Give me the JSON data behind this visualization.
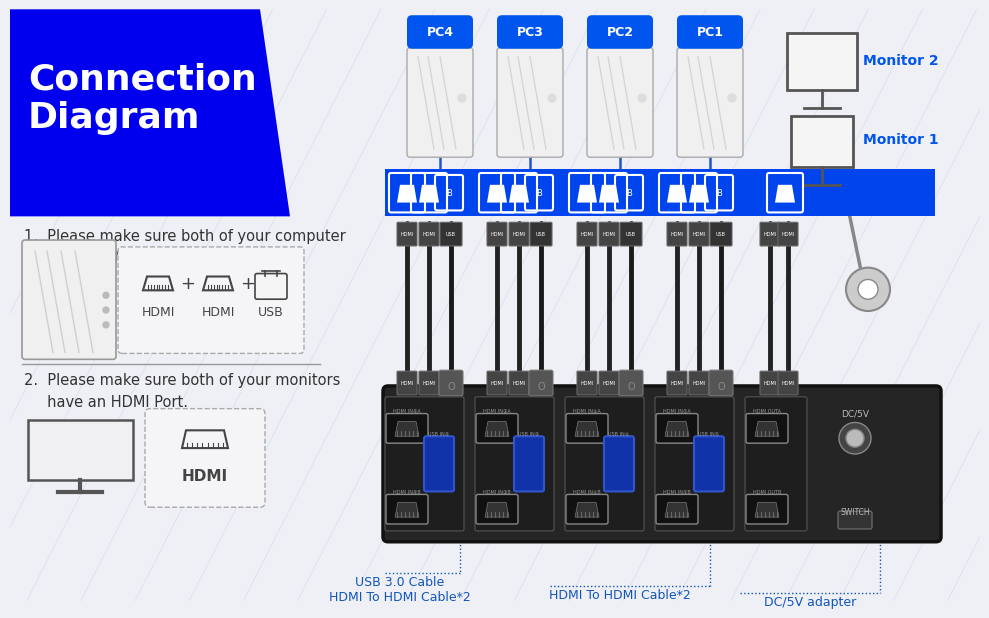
{
  "bg_color": "#eef0f5",
  "title_bg_color": "#0000ee",
  "title_text": "Connection\nDiagram",
  "title_color": "#ffffff",
  "blue_color": "#0055ee",
  "note1": "1.  Please make sure both of your computer\n     has 2 HDMI Ports + USB-A Port.",
  "note2": "2.  Please make sure both of your monitors\n     have an HDMI Port.",
  "cable_label1": "USB 3.0 Cable\nHDMI To HDMI Cable*2",
  "cable_label2": "HDMI To HDMI Cable*2",
  "cable_label3": "DC/5V adapter",
  "pc_labels": [
    "PC4",
    "PC3",
    "PC2",
    "PC1"
  ],
  "monitor_labels": [
    "Monitor 2",
    "Monitor 1"
  ],
  "kvm_bar_color": "#0044ee",
  "kvm_body_color": "#252525",
  "wire_color": "#1a1a1a",
  "port_label_color": "#2255cc",
  "annotation_color": "#1155bb"
}
